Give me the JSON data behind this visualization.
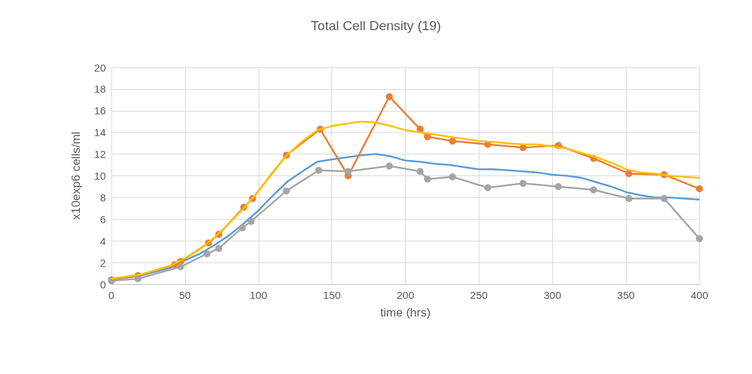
{
  "chart_data": {
    "type": "line",
    "title": "Total Cell Density (19)",
    "xlabel": "time (hrs)",
    "ylabel": "x10exp6 cells/ml",
    "xlim": [
      0,
      400
    ],
    "xticks": [
      0,
      50,
      100,
      150,
      200,
      250,
      300,
      350,
      400
    ],
    "ylim": [
      0,
      20
    ],
    "yticks": [
      0,
      2,
      4,
      6,
      8,
      10,
      12,
      14,
      16,
      18,
      20
    ],
    "grid": true,
    "legend": false,
    "series": [
      {
        "color": "#5b9bd5",
        "marker": "none",
        "x": [
          0,
          20,
          40,
          50,
          60,
          70,
          80,
          90,
          100,
          110,
          120,
          130,
          140,
          150,
          160,
          170,
          180,
          190,
          200,
          210,
          220,
          230,
          240,
          250,
          260,
          270,
          280,
          290,
          300,
          310,
          320,
          330,
          340,
          350,
          360,
          370,
          380,
          390,
          400
        ],
        "values": [
          0.4,
          0.8,
          1.5,
          2.2,
          2.8,
          3.6,
          4.5,
          5.6,
          6.8,
          8.2,
          9.5,
          10.4,
          11.3,
          11.5,
          11.7,
          11.9,
          12.0,
          11.8,
          11.4,
          11.3,
          11.1,
          11.0,
          10.8,
          10.6,
          10.6,
          10.5,
          10.4,
          10.3,
          10.1,
          10.0,
          9.8,
          9.4,
          9.0,
          8.5,
          8.2,
          8.0,
          8.0,
          7.9,
          7.8
        ]
      },
      {
        "color": "#ed7d31",
        "marker": "circle",
        "x": [
          0,
          18,
          43,
          47,
          66,
          73,
          90,
          96,
          119,
          142,
          161,
          189,
          210,
          215,
          232,
          256,
          280,
          304,
          328,
          352,
          376,
          400
        ],
        "values": [
          0.4,
          0.8,
          1.8,
          2.1,
          3.8,
          4.6,
          7.1,
          7.9,
          11.9,
          14.3,
          10.0,
          17.3,
          14.3,
          13.6,
          13.2,
          12.9,
          12.6,
          12.8,
          11.6,
          10.2,
          10.1,
          8.8
        ]
      },
      {
        "color": "#a5a5a5",
        "marker": "circle",
        "x": [
          0,
          18,
          47,
          65,
          73,
          89,
          95,
          119,
          141,
          161,
          189,
          210,
          215,
          232,
          256,
          280,
          304,
          328,
          352,
          376,
          400
        ],
        "values": [
          0.3,
          0.5,
          1.6,
          2.8,
          3.3,
          5.2,
          5.8,
          8.6,
          10.5,
          10.4,
          10.9,
          10.4,
          9.7,
          9.9,
          8.9,
          9.3,
          9.0,
          8.7,
          7.9,
          7.9,
          4.2
        ]
      },
      {
        "color": "#ffc000",
        "marker": "none",
        "x": [
          0,
          20,
          40,
          50,
          60,
          70,
          80,
          90,
          100,
          110,
          120,
          130,
          140,
          150,
          160,
          170,
          180,
          190,
          200,
          210,
          220,
          230,
          240,
          250,
          260,
          270,
          280,
          290,
          300,
          310,
          320,
          330,
          340,
          350,
          360,
          370,
          380,
          390,
          400
        ],
        "values": [
          0.5,
          0.9,
          1.7,
          2.4,
          3.2,
          4.3,
          5.6,
          7.0,
          8.6,
          10.4,
          12.0,
          13.2,
          14.2,
          14.6,
          14.8,
          15.0,
          14.9,
          14.6,
          14.2,
          14.0,
          13.8,
          13.6,
          13.4,
          13.2,
          13.1,
          13.0,
          12.9,
          12.9,
          12.7,
          12.5,
          12.1,
          11.7,
          11.2,
          10.6,
          10.3,
          10.2,
          10.0,
          9.9,
          9.8
        ]
      }
    ]
  }
}
